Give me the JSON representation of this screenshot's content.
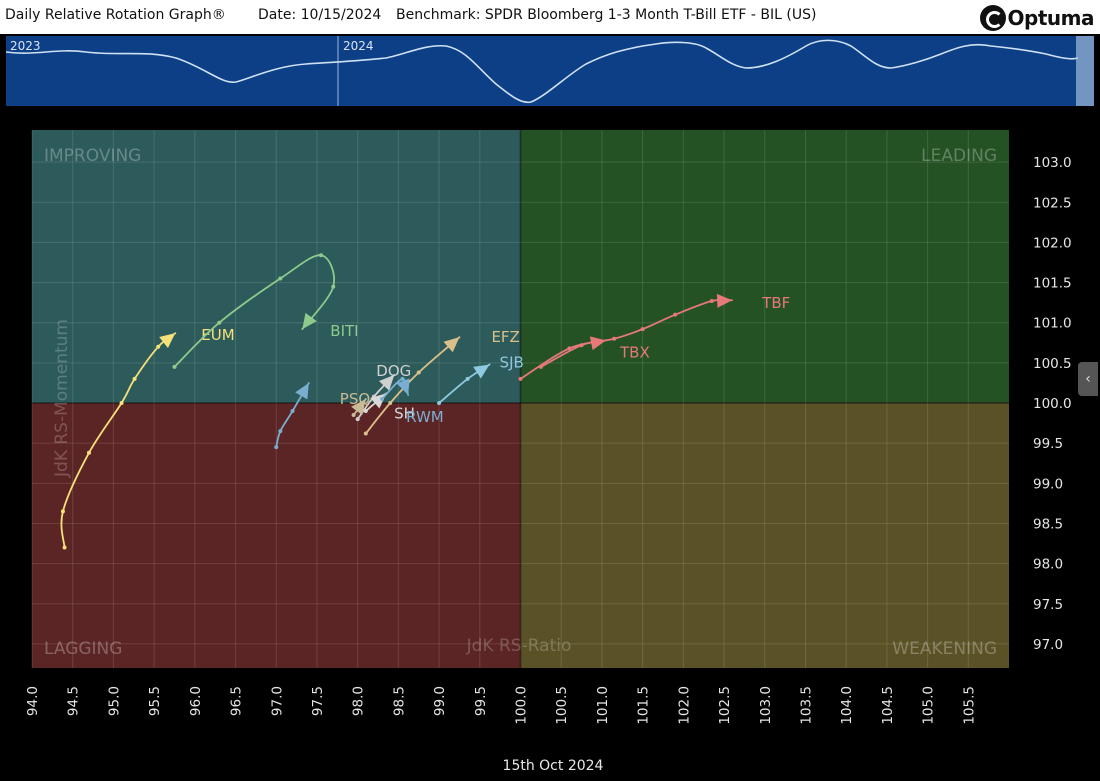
{
  "header": {
    "title": "Daily Relative Rotation Graph®",
    "date": "Date: 10/15/2024",
    "benchmark": "Benchmark: SPDR Bloomberg 1-3 Month T-Bill ETF - BIL (US)",
    "logo": "Optuma"
  },
  "overview": {
    "year_labels": [
      "2023",
      "2024"
    ],
    "bg_color": "#0d3f86"
  },
  "footer": {
    "date_label": "15th Oct 2024"
  },
  "chart_data": {
    "type": "scatter",
    "xlabel": "JdK RS-Ratio",
    "ylabel": "JdK RS-Momentum",
    "xlim": [
      94.0,
      106.0
    ],
    "ylim": [
      96.7,
      103.4
    ],
    "xticks": [
      "94.0",
      "94.5",
      "95.0",
      "95.5",
      "96.0",
      "96.5",
      "97.0",
      "97.5",
      "98.0",
      "98.5",
      "99.0",
      "99.5",
      "100.0",
      "100.5",
      "101.0",
      "101.5",
      "102.0",
      "102.5",
      "103.0",
      "103.5",
      "104.0",
      "104.5",
      "105.0",
      "105.5"
    ],
    "yticks": [
      "97.0",
      "97.5",
      "98.0",
      "98.5",
      "99.0",
      "99.5",
      "100.0",
      "100.5",
      "101.0",
      "101.5",
      "102.0",
      "102.5",
      "103.0"
    ],
    "quadrants": {
      "improving": {
        "label": "IMPROVING",
        "color": "#2d5b5b"
      },
      "leading": {
        "label": "LEADING",
        "color": "#245224"
      },
      "lagging": {
        "label": "LAGGING",
        "color": "#5c2525"
      },
      "weakening": {
        "label": "WEAKENING",
        "color": "#5a5226"
      }
    },
    "center": [
      100.0,
      100.0
    ],
    "grid": true,
    "series": [
      {
        "name": "EUM",
        "color": "#f5e07a",
        "points": [
          [
            94.4,
            98.2
          ],
          [
            94.38,
            98.65
          ],
          [
            94.7,
            99.38
          ],
          [
            95.1,
            100.0
          ],
          [
            95.26,
            100.3
          ],
          [
            95.55,
            100.7
          ],
          [
            95.76,
            100.87
          ]
        ]
      },
      {
        "name": "BITI",
        "color": "#8fc98b",
        "points": [
          [
            95.75,
            100.45
          ],
          [
            96.3,
            101.0
          ],
          [
            97.05,
            101.55
          ],
          [
            97.55,
            101.84
          ],
          [
            97.7,
            101.45
          ],
          [
            97.32,
            100.92
          ]
        ]
      },
      {
        "name": "TBF",
        "color": "#e67979",
        "points": [
          [
            100.0,
            100.3
          ],
          [
            100.6,
            100.68
          ],
          [
            101.15,
            100.8
          ],
          [
            101.5,
            100.92
          ],
          [
            101.9,
            101.1
          ],
          [
            102.35,
            101.27
          ],
          [
            102.6,
            101.28
          ]
        ]
      },
      {
        "name": "TBX",
        "color": "#e67979",
        "points": [
          [
            100.25,
            100.45
          ],
          [
            100.75,
            100.72
          ],
          [
            101.05,
            100.78
          ]
        ]
      },
      {
        "name": "SJB",
        "color": "#8ec9e0",
        "points": [
          [
            99.0,
            100.0
          ],
          [
            99.35,
            100.3
          ],
          [
            99.62,
            100.48
          ]
        ]
      },
      {
        "name": "EFZ",
        "color": "#d9c08a",
        "points": [
          [
            98.1,
            99.62
          ],
          [
            98.4,
            100.0
          ],
          [
            98.75,
            100.38
          ],
          [
            99.25,
            100.82
          ]
        ]
      },
      {
        "name": "DOG",
        "color": "#d0d0d0",
        "points": [
          [
            98.0,
            99.8
          ],
          [
            98.2,
            100.08
          ],
          [
            98.45,
            100.35
          ]
        ]
      },
      {
        "name": "PSQ",
        "color": "#c8bb96",
        "points": [
          [
            97.95,
            99.85
          ],
          [
            98.1,
            100.05
          ]
        ]
      },
      {
        "name": "SH",
        "color": "#d8d8d8",
        "points": [
          [
            98.1,
            99.9
          ],
          [
            98.35,
            100.12
          ]
        ]
      },
      {
        "name": "RWM",
        "color": "#7aaed0",
        "points": [
          [
            98.3,
            100.05
          ],
          [
            98.55,
            100.3
          ],
          [
            98.62,
            100.1
          ]
        ]
      },
      {
        "name": "",
        "color": "#7aaed0",
        "points": [
          [
            97.0,
            99.45
          ],
          [
            97.05,
            99.65
          ],
          [
            97.2,
            99.9
          ],
          [
            97.4,
            100.25
          ]
        ]
      }
    ]
  }
}
